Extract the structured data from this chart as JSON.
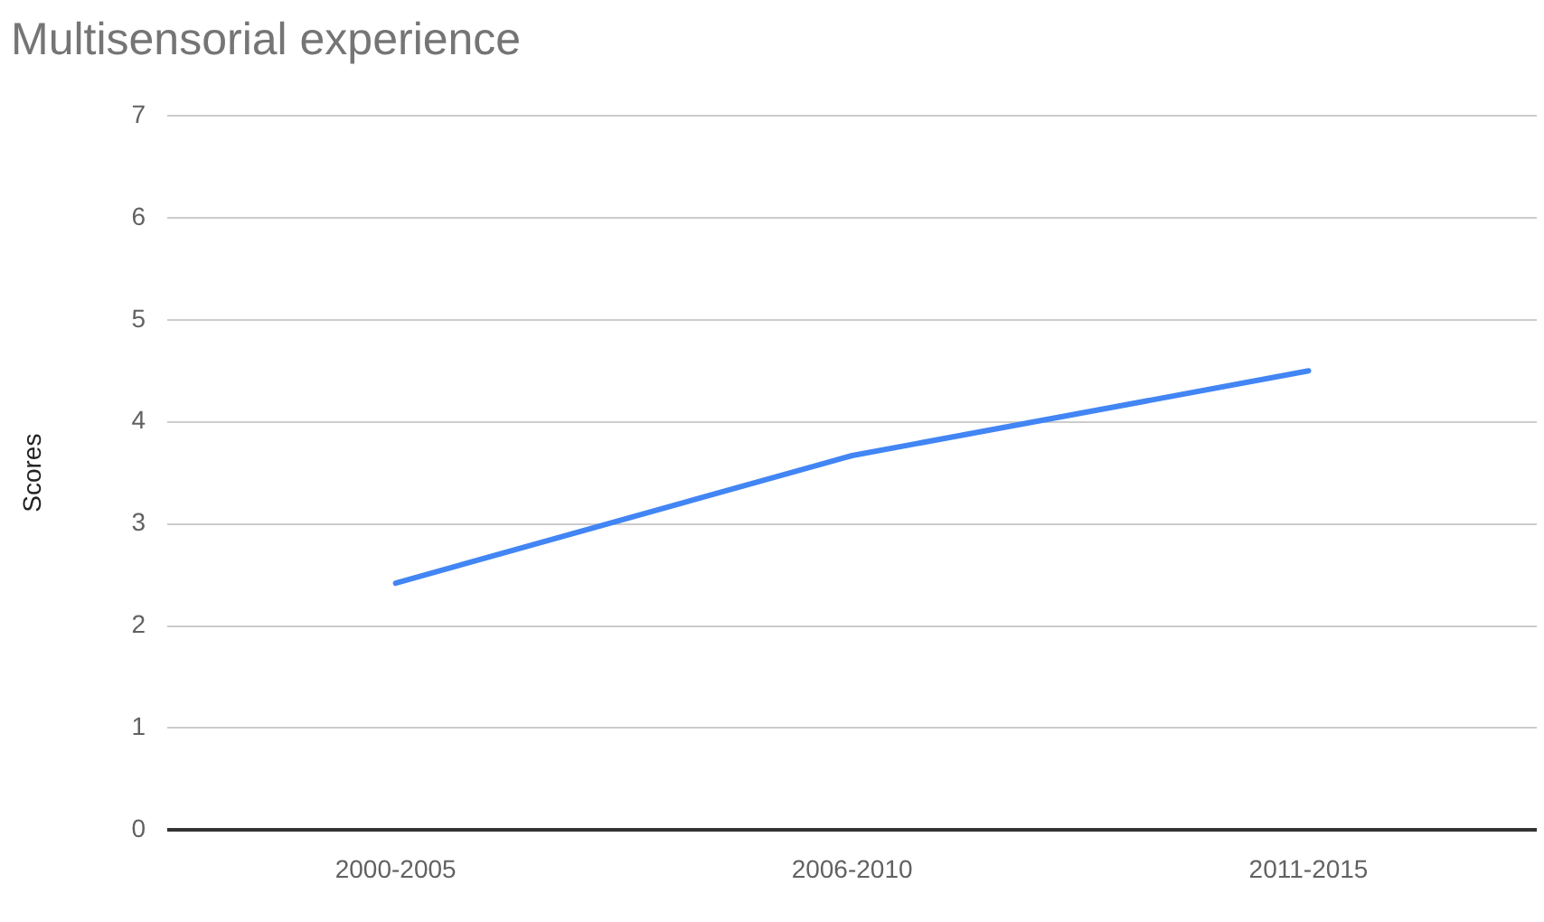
{
  "chart_data": {
    "type": "line",
    "title": "Multisensorial experience",
    "ylabel": "Scores",
    "categories": [
      "2000-2005",
      "2006-2010",
      "2011-2015"
    ],
    "series": [
      {
        "color": "#4285f4",
        "values": [
          2.42,
          3.67,
          4.5
        ]
      }
    ],
    "ylim": [
      0,
      7
    ],
    "yticks": [
      0,
      1,
      2,
      3,
      4,
      5,
      6,
      7
    ],
    "grid": "y",
    "legend": false,
    "marker": "none",
    "line_style": "solid"
  }
}
